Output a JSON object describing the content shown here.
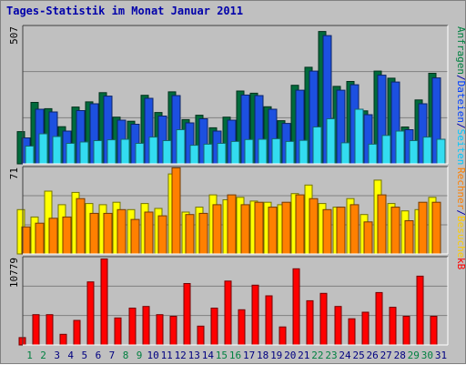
{
  "title": "Tages-Statistik im Monat Januar 2011",
  "chart_data": [
    {
      "type": "bar",
      "panel": "top",
      "ymax_label": "507",
      "ylim": [
        0,
        507
      ],
      "grid": true,
      "right_label_parts": [
        {
          "text": "Anfragen",
          "color": "#008040"
        },
        {
          "text": "/",
          "color": "#0000aa"
        },
        {
          "text": "Dateien",
          "color": "#0040ff"
        },
        {
          "text": "/",
          "color": "#0000aa"
        },
        {
          "text": "Seiten",
          "color": "#00c8ff"
        }
      ],
      "categories": [
        "1",
        "2",
        "3",
        "4",
        "5",
        "6",
        "7",
        "8",
        "9",
        "10",
        "11",
        "12",
        "13",
        "14",
        "15",
        "16",
        "17",
        "18",
        "19",
        "20",
        "21",
        "22",
        "23",
        "24",
        "25",
        "26",
        "27",
        "28",
        "29",
        "30",
        "31"
      ],
      "series": [
        {
          "name": "Anfragen",
          "color": "#006b3c",
          "values": [
            118,
            225,
            202,
            136,
            208,
            227,
            261,
            171,
            156,
            251,
            188,
            264,
            162,
            178,
            132,
            171,
            267,
            259,
            209,
            158,
            288,
            354,
            485,
            284,
            302,
            194,
            340,
            314,
            135,
            234,
            332
          ]
        },
        {
          "name": "Dateien",
          "color": "#1c50e0",
          "values": [
            95,
            200,
            190,
            120,
            195,
            220,
            248,
            160,
            145,
            240,
            175,
            250,
            150,
            165,
            120,
            160,
            252,
            250,
            200,
            148,
            270,
            340,
            470,
            270,
            290,
            180,
            325,
            300,
            125,
            220,
            315
          ]
        },
        {
          "name": "Seiten",
          "color": "#33dcf0",
          "values": [
            65,
            110,
            100,
            75,
            80,
            85,
            88,
            90,
            75,
            98,
            85,
            125,
            68,
            72,
            75,
            82,
            89,
            90,
            92,
            82,
            86,
            135,
            165,
            77,
            200,
            72,
            104,
            120,
            85,
            98,
            90
          ]
        }
      ]
    },
    {
      "type": "bar",
      "panel": "middle",
      "ymax_label": "71",
      "ylim": [
        0,
        71
      ],
      "grid": true,
      "right_label_parts": [
        {
          "text": "Rechner",
          "color": "#ff8000"
        },
        {
          "text": "/",
          "color": "#0000aa"
        },
        {
          "text": "Besuche",
          "color": "#ffcc00"
        }
      ],
      "categories": [
        "1",
        "2",
        "3",
        "4",
        "5",
        "6",
        "7",
        "8",
        "9",
        "10",
        "11",
        "12",
        "13",
        "14",
        "15",
        "16",
        "17",
        "18",
        "19",
        "20",
        "21",
        "22",
        "23",
        "24",
        "25",
        "26",
        "27",
        "28",
        "29",
        "30",
        "31"
      ],
      "series": [
        {
          "name": "Besuche",
          "color": "#ffff00",
          "values": [
            36,
            30,
            51,
            40,
            50,
            41,
            40,
            42,
            36,
            41,
            37,
            65,
            34,
            38,
            48,
            44,
            46,
            43,
            42,
            40,
            49,
            56,
            41,
            38,
            45,
            32,
            60,
            41,
            35,
            36,
            46
          ]
        },
        {
          "name": "Rechner",
          "color": "#ff8000",
          "values": [
            22,
            25,
            29,
            30,
            45,
            33,
            33,
            36,
            28,
            34,
            31,
            70,
            32,
            33,
            40,
            48,
            40,
            42,
            38,
            42,
            48,
            45,
            36,
            38,
            40,
            26,
            48,
            38,
            27,
            42,
            42
          ]
        }
      ]
    },
    {
      "type": "bar",
      "panel": "bottom",
      "ymax_label": "10779",
      "ylim": [
        0,
        10779
      ],
      "grid": true,
      "right_label_parts": [
        {
          "text": "kB",
          "color": "#ff0000"
        }
      ],
      "categories": [
        "1",
        "2",
        "3",
        "4",
        "5",
        "6",
        "7",
        "8",
        "9",
        "10",
        "11",
        "12",
        "13",
        "14",
        "15",
        "16",
        "17",
        "18",
        "19",
        "20",
        "21",
        "22",
        "23",
        "24",
        "25",
        "26",
        "27",
        "28",
        "29",
        "30",
        "31"
      ],
      "series": [
        {
          "name": "kB",
          "color": "#ff0000",
          "values": [
            900,
            3700,
            3700,
            1300,
            3000,
            7700,
            10500,
            3300,
            4500,
            4700,
            3700,
            3500,
            7500,
            2300,
            4500,
            7800,
            4300,
            7300,
            6000,
            2200,
            9300,
            5400,
            6300,
            4700,
            3200,
            4000,
            6400,
            4600,
            3500,
            8400,
            3500
          ]
        }
      ]
    }
  ],
  "x_labels": [
    {
      "text": "1",
      "color": "#008040"
    },
    {
      "text": "2",
      "color": "#008040"
    },
    {
      "text": "3",
      "color": "#000080"
    },
    {
      "text": "4",
      "color": "#000080"
    },
    {
      "text": "5",
      "color": "#000080"
    },
    {
      "text": "6",
      "color": "#000080"
    },
    {
      "text": "7",
      "color": "#000080"
    },
    {
      "text": "8",
      "color": "#008040"
    },
    {
      "text": "9",
      "color": "#008040"
    },
    {
      "text": "10",
      "color": "#000080"
    },
    {
      "text": "11",
      "color": "#000080"
    },
    {
      "text": "12",
      "color": "#000080"
    },
    {
      "text": "13",
      "color": "#000080"
    },
    {
      "text": "14",
      "color": "#000080"
    },
    {
      "text": "15",
      "color": "#008040"
    },
    {
      "text": "16",
      "color": "#008040"
    },
    {
      "text": "17",
      "color": "#000080"
    },
    {
      "text": "18",
      "color": "#000080"
    },
    {
      "text": "19",
      "color": "#000080"
    },
    {
      "text": "20",
      "color": "#000080"
    },
    {
      "text": "21",
      "color": "#000080"
    },
    {
      "text": "22",
      "color": "#008040"
    },
    {
      "text": "23",
      "color": "#008040"
    },
    {
      "text": "24",
      "color": "#000080"
    },
    {
      "text": "25",
      "color": "#000080"
    },
    {
      "text": "26",
      "color": "#000080"
    },
    {
      "text": "27",
      "color": "#000080"
    },
    {
      "text": "28",
      "color": "#000080"
    },
    {
      "text": "29",
      "color": "#008040"
    },
    {
      "text": "30",
      "color": "#008040"
    },
    {
      "text": "31",
      "color": "#000080"
    }
  ]
}
